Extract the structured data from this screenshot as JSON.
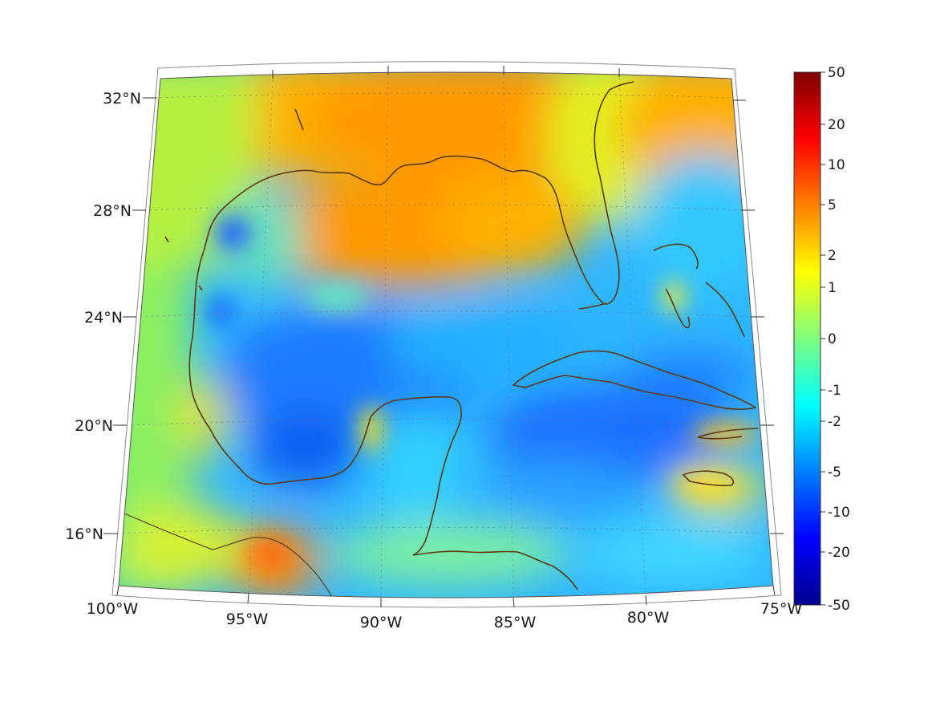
{
  "map": {
    "region": "Gulf of Mexico and Caribbean",
    "projection": "conic",
    "lon_labels": [
      "100°W",
      "95°W",
      "90°W",
      "85°W",
      "80°W",
      "75°W"
    ],
    "lat_labels": [
      "32°N",
      "28°N",
      "24°N",
      "20°N",
      "16°N"
    ],
    "grid": true,
    "coastline_color": "#5a3a12"
  },
  "colorbar": {
    "colormap": "jet",
    "orientation": "vertical",
    "placement": "right",
    "scale": "symmetric-log",
    "tick_labels": [
      "50",
      "20",
      "10",
      "5",
      "2",
      "1",
      "0",
      "-1",
      "-2",
      "-5",
      "-10",
      "-20",
      "-50"
    ],
    "min_color": "#00008f",
    "max_color": "#800000"
  },
  "chart_data": {
    "type": "heatmap",
    "xlabel": "",
    "ylabel": "",
    "x_range": [
      -100,
      -75
    ],
    "y_range": [
      14,
      33
    ],
    "value_range": [
      -50,
      50
    ],
    "color_scale": "jet, symmetric log",
    "regions": [
      {
        "area": "Northern Gulf shelf",
        "approx_value": 5
      },
      {
        "area": "Southeastern US interior",
        "approx_value": 3
      },
      {
        "area": "Central and southern Gulf",
        "approx_value": -4
      },
      {
        "area": "Bay of Campeche",
        "approx_value": -6
      },
      {
        "area": "Caribbean south of Cuba",
        "approx_value": -6
      },
      {
        "area": "Northwest Caribbean",
        "approx_value": -3
      },
      {
        "area": "Mexican interior",
        "approx_value": 0.5
      },
      {
        "area": "South of Jamaica",
        "approx_value": 2
      },
      {
        "area": "Southern Mexico near Tehuantepec",
        "approx_value": 4
      }
    ]
  }
}
